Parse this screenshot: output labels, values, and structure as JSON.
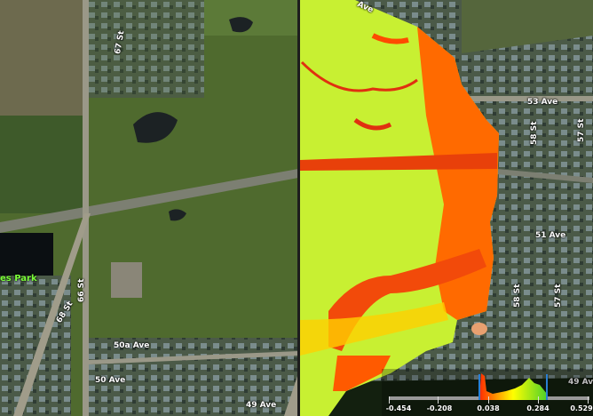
{
  "map": {
    "left_view": "satellite",
    "right_view": "vegetation-index",
    "street_labels": {
      "s53ave": "53 Ave",
      "s58st_top": "58 St",
      "s57st_top": "57 St",
      "s51ave": "51 Ave",
      "s58st_bot": "58 St",
      "s57st_bot": "57 St",
      "s49ave_right": "49 Ave",
      "s49ave_left": "49 Ave",
      "s50aave": "50a Ave",
      "s50ave": "50 Ave",
      "s66st": "66 St",
      "s68st": "68 St",
      "s67st": "67 St",
      "top_ave": "Ave",
      "park": "es Park"
    }
  },
  "legend": {
    "ticks": [
      "-0.454",
      "-0.208",
      "0.038",
      "0.284",
      "0.529"
    ],
    "range": [
      -0.454,
      0.529
    ],
    "selected_range": [
      0.038,
      0.284
    ],
    "colors": {
      "low": "#ff2a00",
      "mid": "#ffff00",
      "high": "#4fd12a",
      "marker": "#2a7fd4"
    }
  }
}
